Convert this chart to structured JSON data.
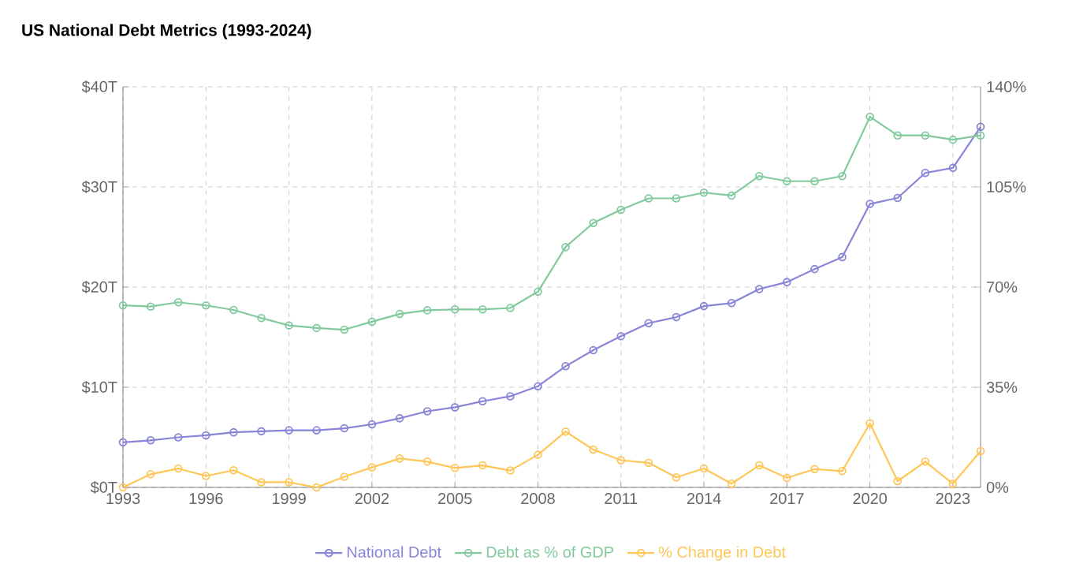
{
  "chart_data": {
    "type": "line",
    "title": "US National Debt Metrics (1993-2024)",
    "x": [
      1993,
      1994,
      1995,
      1996,
      1997,
      1998,
      1999,
      2000,
      2001,
      2002,
      2003,
      2004,
      2005,
      2006,
      2007,
      2008,
      2009,
      2010,
      2011,
      2012,
      2013,
      2014,
      2015,
      2016,
      2017,
      2018,
      2019,
      2020,
      2021,
      2022,
      2023,
      2024
    ],
    "series": [
      {
        "name": "National Debt",
        "color": "#8884d8",
        "axis": "y",
        "values": [
          4.5,
          4.7,
          5.0,
          5.2,
          5.5,
          5.6,
          5.7,
          5.7,
          5.9,
          6.3,
          6.9,
          7.6,
          8.0,
          8.6,
          9.1,
          10.1,
          12.1,
          13.7,
          15.1,
          16.4,
          17.0,
          18.1,
          18.4,
          19.8,
          20.5,
          21.8,
          23.0,
          28.3,
          28.9,
          31.4,
          31.9,
          36.0
        ]
      },
      {
        "name": "Debt as % of GDP",
        "color": "#82ca9d",
        "axis": "y2",
        "values": [
          63.6,
          63.2,
          64.7,
          63.6,
          62,
          59.2,
          56.6,
          55.7,
          55.1,
          57.9,
          60.6,
          61.9,
          62.2,
          62.2,
          62.7,
          68.4,
          84,
          92.4,
          97,
          101,
          101,
          103,
          102,
          108.8,
          107,
          107,
          108.8,
          129.5,
          123,
          123,
          121.5,
          123
        ]
      },
      {
        "name": "% Change in Debt",
        "color": "#ffc658",
        "axis": "y2",
        "values": [
          0,
          4.6,
          6.6,
          4,
          6,
          1.8,
          1.8,
          0,
          3.7,
          7,
          10.1,
          9,
          6.8,
          7.7,
          5.9,
          11.4,
          19.5,
          13.2,
          9.5,
          8.6,
          3.5,
          6.6,
          1.3,
          7.7,
          3.3,
          6.4,
          5.7,
          22.4,
          2.2,
          9,
          1.3,
          12.7
        ]
      }
    ],
    "xlim": [
      1993,
      2024
    ],
    "xticks": [
      1993,
      1996,
      1999,
      2002,
      2005,
      2008,
      2011,
      2014,
      2017,
      2020,
      2023
    ],
    "ylim": [
      0,
      40
    ],
    "yticks": [
      {
        "value": 0,
        "label": "$0T"
      },
      {
        "value": 10,
        "label": "$10T"
      },
      {
        "value": 20,
        "label": "$20T"
      },
      {
        "value": 30,
        "label": "$30T"
      },
      {
        "value": 40,
        "label": "$40T"
      }
    ],
    "y2lim": [
      0,
      140
    ],
    "y2ticks": [
      {
        "value": 0,
        "label": "0%"
      },
      {
        "value": 35,
        "label": "35%"
      },
      {
        "value": 70,
        "label": "70%"
      },
      {
        "value": 105,
        "label": "105%"
      },
      {
        "value": 140,
        "label": "140%"
      }
    ],
    "grid": true,
    "legend": "bottom",
    "marker": "circle",
    "line_style": "solid"
  }
}
